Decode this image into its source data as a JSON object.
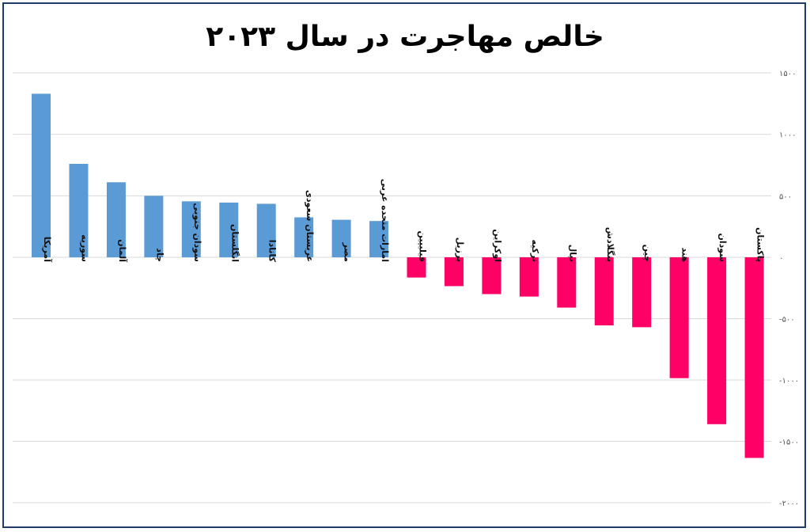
{
  "chart_data": {
    "type": "bar",
    "title": "خالص مهاجرت در سال ۲۰۲۳",
    "xlabel": "",
    "ylabel": "",
    "ylim": [
      -2000,
      1500
    ],
    "yticks": [
      1500,
      1000,
      500,
      0,
      -500,
      -1000,
      -1500,
      -2000
    ],
    "ytick_labels": [
      "۱۵۰۰",
      "۱۰۰۰",
      "۵۰۰",
      "۰",
      "-۵۰۰",
      "-۱۰۰۰",
      "-۱۵۰۰",
      "-۲۰۰۰"
    ],
    "grid": true,
    "categories": [
      "آمریکا",
      "سوریه",
      "آلمان",
      "چاد",
      "سودان جنوبی",
      "انگلستان",
      "کانادا",
      "عربستان سعودی",
      "مصر",
      "امارات متحده عربی",
      "فیلیپین",
      "برزیل",
      "اوکراین",
      "ترکیه",
      "نپال",
      "بنگلادش",
      "چین",
      "هند",
      "سودان",
      "پاکستان"
    ],
    "values": [
      1330,
      760,
      610,
      500,
      455,
      445,
      435,
      325,
      305,
      295,
      -165,
      -235,
      -300,
      -320,
      -410,
      -555,
      -570,
      -985,
      -1360,
      -1635
    ],
    "colors": {
      "positive": "#5b9bd5",
      "negative": "#ff0066"
    }
  }
}
